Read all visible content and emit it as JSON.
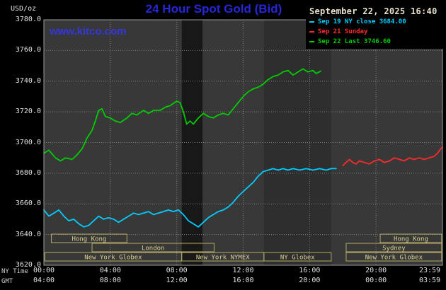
{
  "header": {
    "datetime": "September 22, 2025 16:40"
  },
  "branding": {
    "site": "www.kitco.com"
  },
  "chart_data": {
    "type": "line",
    "title": "24 Hour Spot Gold (Bid)",
    "prev_ny_close": 3684.0,
    "last": 3746.6,
    "colors": {
      "plot_bg": "#383838",
      "grid": "#7d7d7d",
      "frame": "#9b9b9b",
      "session_border": "#b4aa66",
      "session_text": "#d9d092",
      "title_blue": "#2727d8",
      "kitco_blue": "#3535e0",
      "timestamp_text": "#e8e2cc",
      "axis_text": "#e0e0e0"
    },
    "y_axis": {
      "unit": "USD/oz",
      "min": 3620,
      "max": 3780,
      "ticks": [
        3780,
        3760,
        3740,
        3720,
        3700,
        3680,
        3660,
        3640,
        3620
      ]
    },
    "x_axis": {
      "tz_primary": "NY Time",
      "tz_secondary": "GMT",
      "range_hours": [
        0,
        24
      ],
      "ticks": [
        {
          "hour": 0,
          "ny": "00:00",
          "gmt": "04:00"
        },
        {
          "hour": 4,
          "ny": "04:00",
          "gmt": "08:00"
        },
        {
          "hour": 8,
          "ny": "08:00",
          "gmt": "12:00"
        },
        {
          "hour": 12,
          "ny": "12:00",
          "gmt": "16:00"
        },
        {
          "hour": 16,
          "ny": "16:00",
          "gmt": "20:00"
        },
        {
          "hour": 20,
          "ny": "20:00",
          "gmt": "00:00"
        },
        {
          "hour": 24,
          "ny": "23:59",
          "gmt": "03:59"
        }
      ]
    },
    "bands": [
      {
        "start": 8.3,
        "end": 9.55,
        "color": "#181818"
      },
      {
        "start": 13.25,
        "end": 17.3,
        "color": "#2e2e2e"
      }
    ],
    "series": [
      {
        "id": "sep19",
        "name": "Sep 19 NY close 3684.00",
        "color": "#00ccff",
        "points": [
          [
            0,
            3656
          ],
          [
            0.3,
            3652
          ],
          [
            0.6,
            3654
          ],
          [
            0.9,
            3656
          ],
          [
            1.2,
            3652
          ],
          [
            1.5,
            3649
          ],
          [
            1.8,
            3650
          ],
          [
            2.1,
            3647
          ],
          [
            2.4,
            3645
          ],
          [
            2.7,
            3646
          ],
          [
            3,
            3649
          ],
          [
            3.3,
            3652
          ],
          [
            3.6,
            3650
          ],
          [
            3.9,
            3651
          ],
          [
            4.2,
            3650
          ],
          [
            4.5,
            3648
          ],
          [
            4.8,
            3650
          ],
          [
            5.1,
            3652
          ],
          [
            5.4,
            3654
          ],
          [
            5.7,
            3653
          ],
          [
            6,
            3654
          ],
          [
            6.3,
            3655
          ],
          [
            6.6,
            3653
          ],
          [
            6.9,
            3654
          ],
          [
            7.2,
            3655
          ],
          [
            7.5,
            3656
          ],
          [
            7.8,
            3655
          ],
          [
            8.1,
            3656
          ],
          [
            8.4,
            3653
          ],
          [
            8.7,
            3649
          ],
          [
            9,
            3647
          ],
          [
            9.3,
            3645
          ],
          [
            9.6,
            3648
          ],
          [
            9.9,
            3651
          ],
          [
            10.2,
            3653
          ],
          [
            10.5,
            3655
          ],
          [
            10.8,
            3656
          ],
          [
            11.1,
            3658
          ],
          [
            11.4,
            3661
          ],
          [
            11.7,
            3665
          ],
          [
            12,
            3668
          ],
          [
            12.3,
            3671
          ],
          [
            12.6,
            3674
          ],
          [
            12.9,
            3678
          ],
          [
            13.2,
            3681
          ],
          [
            13.5,
            3682
          ],
          [
            13.8,
            3683
          ],
          [
            14.1,
            3682
          ],
          [
            14.4,
            3683
          ],
          [
            14.7,
            3682
          ],
          [
            15,
            3683
          ],
          [
            15.4,
            3682
          ],
          [
            15.8,
            3683
          ],
          [
            16.2,
            3682
          ],
          [
            16.6,
            3683
          ],
          [
            17,
            3682
          ],
          [
            17.3,
            3683
          ],
          [
            17.6,
            3683
          ]
        ]
      },
      {
        "id": "sep21",
        "name": "Sep 21 Sunday",
        "color": "#ff2a2a",
        "points": [
          [
            18,
            3685
          ],
          [
            18.2,
            3687
          ],
          [
            18.4,
            3689
          ],
          [
            18.6,
            3687
          ],
          [
            18.8,
            3686
          ],
          [
            19,
            3688
          ],
          [
            19.3,
            3687
          ],
          [
            19.6,
            3686
          ],
          [
            19.9,
            3688
          ],
          [
            20.2,
            3689
          ],
          [
            20.5,
            3687
          ],
          [
            20.8,
            3688
          ],
          [
            21.1,
            3690
          ],
          [
            21.4,
            3689
          ],
          [
            21.7,
            3688
          ],
          [
            22,
            3690
          ],
          [
            22.3,
            3689
          ],
          [
            22.6,
            3690
          ],
          [
            22.9,
            3689
          ],
          [
            23.2,
            3690
          ],
          [
            23.5,
            3691
          ],
          [
            23.7,
            3693
          ],
          [
            23.9,
            3696
          ],
          [
            24,
            3697
          ]
        ]
      },
      {
        "id": "sep22",
        "name": "Sep 22 Last 3746.60",
        "color": "#00cc00",
        "points": [
          [
            0,
            3693
          ],
          [
            0.3,
            3695
          ],
          [
            0.7,
            3690
          ],
          [
            1,
            3688
          ],
          [
            1.3,
            3690
          ],
          [
            1.7,
            3689
          ],
          [
            2,
            3692
          ],
          [
            2.3,
            3696
          ],
          [
            2.6,
            3703
          ],
          [
            2.9,
            3708
          ],
          [
            3.1,
            3714
          ],
          [
            3.3,
            3721
          ],
          [
            3.5,
            3722
          ],
          [
            3.7,
            3717
          ],
          [
            4,
            3716
          ],
          [
            4.3,
            3714
          ],
          [
            4.6,
            3713
          ],
          [
            5,
            3716
          ],
          [
            5.3,
            3719
          ],
          [
            5.6,
            3718
          ],
          [
            6,
            3721
          ],
          [
            6.3,
            3719
          ],
          [
            6.6,
            3721
          ],
          [
            7,
            3721
          ],
          [
            7.3,
            3723
          ],
          [
            7.6,
            3724
          ],
          [
            8,
            3727
          ],
          [
            8.2,
            3726
          ],
          [
            8.4,
            3720
          ],
          [
            8.6,
            3712
          ],
          [
            8.8,
            3714
          ],
          [
            9,
            3712
          ],
          [
            9.3,
            3716
          ],
          [
            9.6,
            3719
          ],
          [
            9.9,
            3717
          ],
          [
            10.2,
            3716
          ],
          [
            10.5,
            3718
          ],
          [
            10.8,
            3719
          ],
          [
            11.1,
            3718
          ],
          [
            11.4,
            3722
          ],
          [
            11.7,
            3726
          ],
          [
            12,
            3730
          ],
          [
            12.3,
            3733
          ],
          [
            12.6,
            3735
          ],
          [
            12.9,
            3736
          ],
          [
            13.2,
            3738
          ],
          [
            13.5,
            3741
          ],
          [
            13.8,
            3743
          ],
          [
            14.1,
            3744
          ],
          [
            14.4,
            3746
          ],
          [
            14.7,
            3747
          ],
          [
            15,
            3744
          ],
          [
            15.3,
            3746
          ],
          [
            15.6,
            3748
          ],
          [
            15.9,
            3746
          ],
          [
            16.2,
            3747
          ],
          [
            16.4,
            3745
          ],
          [
            16.67,
            3746.6
          ]
        ]
      }
    ],
    "sessions": [
      {
        "label": "Hong Kong",
        "row": 0,
        "start": 0.45,
        "end": 5.0
      },
      {
        "label": "Hong Kong",
        "row": 0,
        "start": 20.25,
        "end": 23.95
      },
      {
        "label": "London",
        "row": 1,
        "start": 2.9,
        "end": 10.25
      },
      {
        "label": "Sydney",
        "row": 1,
        "start": 18.2,
        "end": 23.95
      },
      {
        "label": "New York Globex",
        "row": 2,
        "start": 0.05,
        "end": 8.3
      },
      {
        "label": "New York NYMEX",
        "row": 2,
        "start": 8.3,
        "end": 13.25
      },
      {
        "label": "NY Globex",
        "row": 2,
        "start": 13.25,
        "end": 17.3
      },
      {
        "label": "New York Globex",
        "row": 2,
        "start": 18.2,
        "end": 23.95
      }
    ]
  }
}
